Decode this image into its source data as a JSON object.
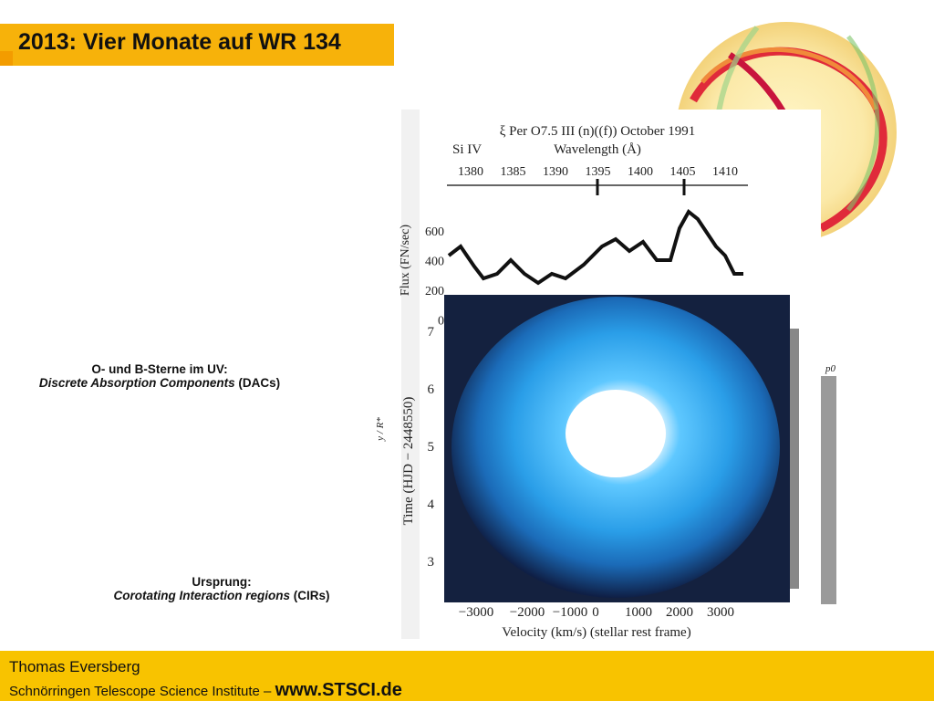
{
  "header": {
    "title": "2013: Vier Monate auf WR 134"
  },
  "notes": [
    {
      "heading": "O- und B-Sterne im UV:",
      "italic": "Discrete Absorption Components",
      "suffix": " (DACs)"
    },
    {
      "heading": "Ursprung:",
      "italic": "Corotating Interaction regions",
      "suffix": " (CIRs)"
    }
  ],
  "figure": {
    "title": "ξ Per  O7.5 III (n)((f))  October 1991",
    "line_label": "Si IV",
    "top_axis_label": "Wavelength (Å)",
    "top_ticks": [
      "1380",
      "1385",
      "1390",
      "1395",
      "1400",
      "1405",
      "1410"
    ],
    "flux_label": "Flux (FN/sec)",
    "flux_ticks": [
      "600",
      "400",
      "200",
      "0"
    ],
    "time_label": "Time (HJD − 2448550)",
    "time_ticks": [
      "7",
      "6",
      "5",
      "4",
      "3"
    ],
    "velocity_ticks": [
      "−3000",
      "−2000",
      "−1000",
      "0",
      "1000",
      "2000",
      "3000"
    ],
    "bottom_axis_label": "Velocity (km/s)   (stellar rest frame)",
    "side_label": "y / R*",
    "corner_label": "p0"
  },
  "footer": {
    "name": "Thomas Eversberg",
    "institute": "Schnörringen Telescope Science Institute – ",
    "url": "www.STSCI.de"
  }
}
